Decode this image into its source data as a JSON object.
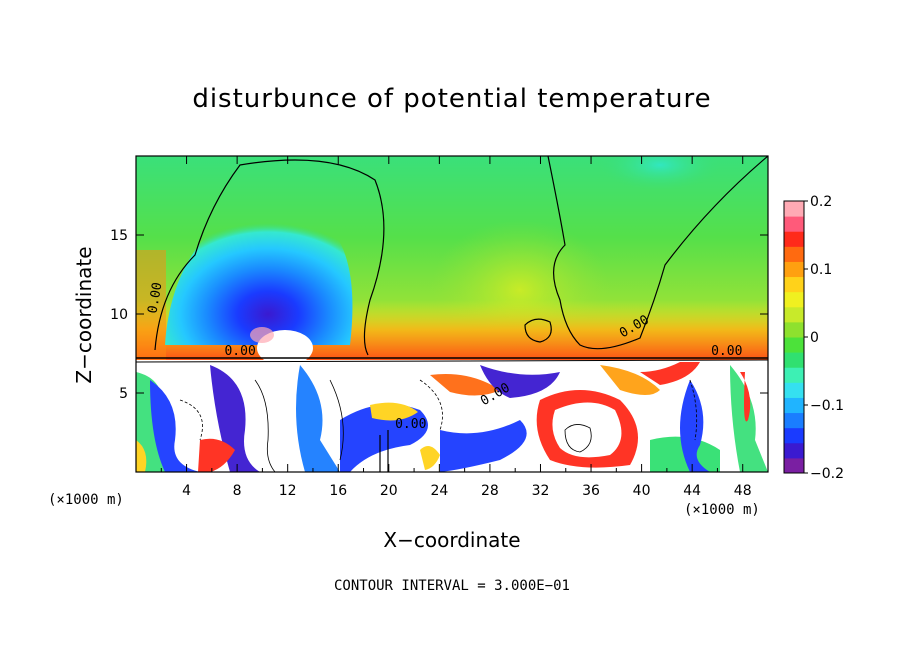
{
  "chart_data": {
    "type": "heatmap",
    "title": "disturbunce of potential temperature",
    "xlabel": "X−coordinate",
    "ylabel": "Z−coordinate",
    "x_unit_left": "(×1000 m)",
    "x_unit_right": "(×1000 m)",
    "footer": "CONTOUR INTERVAL = 3.000E−01",
    "xlim": [
      0,
      50
    ],
    "ylim": [
      0,
      20
    ],
    "x_ticks": [
      "4",
      "8",
      "12",
      "16",
      "20",
      "24",
      "28",
      "32",
      "36",
      "40",
      "44",
      "48"
    ],
    "y_ticks": [
      "5",
      "10",
      "15"
    ],
    "colorbar": {
      "range": [
        -0.2,
        0.2
      ],
      "tick_labels": [
        "0.2",
        "0.1",
        "0",
        "−0.1",
        "−0.2"
      ],
      "colors": [
        "#7a1fa2",
        "#3a1ad0",
        "#1a3bff",
        "#1a7dff",
        "#20b4ff",
        "#35e0f0",
        "#3df0b4",
        "#30e070",
        "#4ce23a",
        "#8ee12e",
        "#c8ea2a",
        "#f0f020",
        "#ffd21a",
        "#ffa010",
        "#ff6a10",
        "#ff2a1a",
        "#ff5a7a",
        "#ffaab4"
      ]
    },
    "contour_labels": [
      "0.00",
      "0.00",
      "0.00",
      "0.00",
      "0.00",
      "0.00"
    ],
    "grid": false
  }
}
